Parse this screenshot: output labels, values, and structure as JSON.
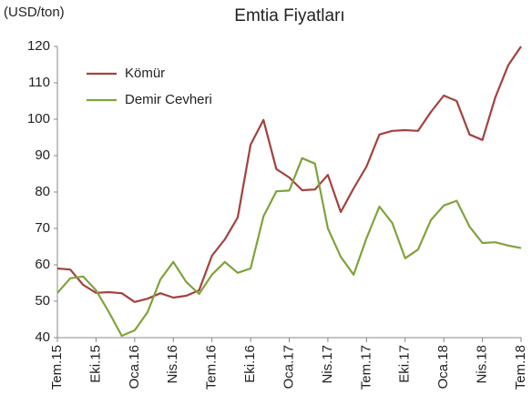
{
  "chart_data": {
    "type": "line",
    "title": "Emtia Fiyatları",
    "y_label": "(USD/ton)",
    "categories": [
      "Tem.15",
      null,
      null,
      "Eki.15",
      null,
      null,
      "Oca.16",
      null,
      null,
      "Nis.16",
      null,
      null,
      "Tem.16",
      null,
      null,
      "Eki.16",
      null,
      null,
      "Oca.17",
      null,
      null,
      "Nis.17",
      null,
      null,
      "Tem.17",
      null,
      null,
      "Eki.17",
      null,
      null,
      "Oca.18",
      null,
      null,
      "Nis.18",
      null,
      null,
      "Tem.18"
    ],
    "series": [
      {
        "name": "Kömür",
        "color": "#a3423d",
        "values": [
          59,
          58.7,
          54.5,
          52.3,
          52.5,
          52.2,
          49.8,
          50.7,
          52.2,
          51,
          51.5,
          53,
          62.5,
          67,
          73,
          93,
          99.8,
          86.3,
          84,
          80.5,
          80.7,
          84.7,
          74.5,
          81,
          87,
          95.8,
          96.8,
          97,
          96.8,
          102,
          106.5,
          105,
          95.8,
          94.3,
          106,
          114.8,
          120
        ]
      },
      {
        "name": "Demir Cevheri",
        "color": "#7fa33b",
        "values": [
          52.3,
          56.3,
          56.8,
          53,
          47,
          40.5,
          42,
          47,
          56,
          60.8,
          55.3,
          52,
          57.3,
          60.8,
          57.8,
          59,
          73.3,
          80.2,
          80.4,
          89.3,
          87.8,
          70,
          62.2,
          57.3,
          67.3,
          76,
          71.5,
          61.8,
          64.2,
          72.3,
          76.3,
          77.6,
          70.5,
          66,
          66.2,
          65.3,
          64.6
        ]
      }
    ],
    "ylim": [
      40,
      120
    ],
    "yticks": [
      40,
      50,
      60,
      70,
      80,
      90,
      100,
      110,
      120
    ],
    "grid": false,
    "legend": "upper left"
  }
}
